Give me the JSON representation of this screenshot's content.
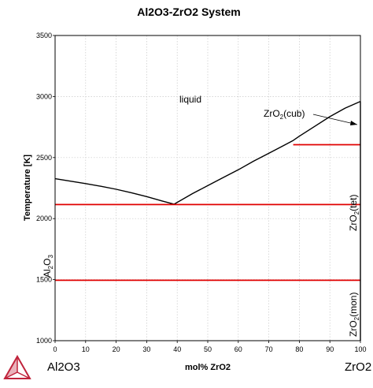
{
  "chart_data": {
    "type": "line",
    "title": "Al2O3-ZrO2 System",
    "xlabel": "mol% ZrO2",
    "ylabel": "Temperature [K]",
    "xlim": [
      0,
      100
    ],
    "ylim": [
      1000,
      3500
    ],
    "xticks": [
      0,
      10,
      20,
      30,
      40,
      50,
      60,
      70,
      80,
      90,
      100
    ],
    "yticks": [
      1000,
      1500,
      2000,
      2500,
      3000,
      3500
    ],
    "grid": true,
    "endmember_left": "Al2O3",
    "endmember_right": "ZrO2",
    "region_labels": {
      "liquid": "liquid",
      "alumina": {
        "base": "Al",
        "sub1": "2",
        "mid": "O",
        "sub2": "3"
      },
      "zro2_cub": {
        "base": "ZrO",
        "sub": "2",
        "rest": "(cub)"
      },
      "zro2_tet": {
        "base": "ZrO",
        "sub": "2",
        "rest": "(tet)"
      },
      "zro2_mon": {
        "base": "ZrO",
        "sub": "2",
        "rest": "(mon)"
      }
    },
    "series": [
      {
        "role": "liquidus",
        "color": "#000000",
        "x": [
          0,
          5,
          10,
          15,
          20,
          25,
          30,
          35,
          39,
          45,
          50,
          55,
          60,
          65,
          70,
          75,
          78,
          80,
          85,
          90,
          95,
          100
        ],
        "y": [
          2327,
          2307,
          2287,
          2265,
          2240,
          2212,
          2180,
          2145,
          2118,
          2205,
          2270,
          2335,
          2400,
          2470,
          2535,
          2600,
          2640,
          2675,
          2755,
          2835,
          2905,
          2960
        ]
      },
      {
        "role": "cub-tet transition",
        "color": "#e00000",
        "x": [
          78,
          100
        ],
        "y": [
          2605,
          2605
        ]
      },
      {
        "role": "eutectic",
        "color": "#e00000",
        "x": [
          0,
          100
        ],
        "y": [
          2115,
          2115
        ]
      },
      {
        "role": "tet-mon transition",
        "color": "#e00000",
        "x": [
          0,
          100
        ],
        "y": [
          1495,
          1495
        ]
      },
      {
        "role": "ZrO2 boundary",
        "color": "#000000",
        "x": [
          100,
          100
        ],
        "y": [
          1000,
          2960
        ]
      }
    ],
    "colors": {
      "phase_line": "#000000",
      "invariant": "#e00000",
      "grid": "#c8c8c8",
      "logo": "#c0243c"
    }
  }
}
